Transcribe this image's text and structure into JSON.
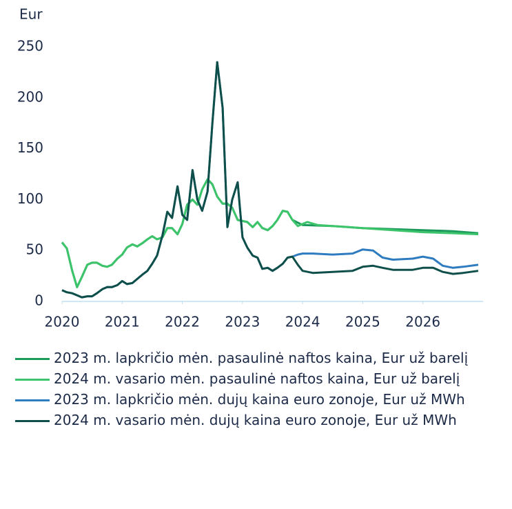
{
  "chart_data": {
    "type": "line",
    "y_label": "Eur",
    "xlim": [
      2020,
      2027
    ],
    "xticks": [
      2020,
      2021,
      2022,
      2023,
      2024,
      2025,
      2026
    ],
    "ylim": [
      0,
      250
    ],
    "yticks": [
      0,
      50,
      100,
      150,
      200,
      250
    ],
    "grid": false,
    "series": [
      {
        "name": "2023 m. lapkričio mėn. pasaulinė naftos kaina, Eur už barelį",
        "color": "#1b9a5c",
        "x": [
          2020,
          2020.08,
          2020.17,
          2020.25,
          2020.33,
          2020.42,
          2020.5,
          2020.58,
          2020.67,
          2020.75,
          2020.83,
          2020.92,
          2021,
          2021.08,
          2021.17,
          2021.25,
          2021.33,
          2021.42,
          2021.5,
          2021.58,
          2021.67,
          2021.75,
          2021.83,
          2021.92,
          2022,
          2022.08,
          2022.17,
          2022.25,
          2022.33,
          2022.42,
          2022.5,
          2022.58,
          2022.67,
          2022.75,
          2022.83,
          2022.92,
          2023,
          2023.08,
          2023.17,
          2023.25,
          2023.33,
          2023.42,
          2023.5,
          2023.58,
          2023.67,
          2023.75,
          2023.83,
          2024,
          2024.5,
          2025,
          2025.5,
          2026,
          2026.5,
          2026.92
        ],
        "values": [
          58,
          52,
          30,
          14,
          24,
          36,
          38,
          38,
          35,
          34,
          36,
          42,
          46,
          53,
          56,
          54,
          57,
          61,
          64,
          61,
          63,
          72,
          72,
          66,
          76,
          95,
          100,
          95,
          110,
          120,
          115,
          103,
          96,
          96,
          92,
          80,
          79,
          78,
          73,
          78,
          72,
          70,
          74,
          80,
          89,
          88,
          80,
          75,
          74,
          72,
          71,
          70,
          69,
          67
        ]
      },
      {
        "name": "2024 m. vasario mėn. pasaulinė naftos kaina, Eur už barelį",
        "color": "#3cc46a",
        "x": [
          2020,
          2020.08,
          2020.17,
          2020.25,
          2020.33,
          2020.42,
          2020.5,
          2020.58,
          2020.67,
          2020.75,
          2020.83,
          2020.92,
          2021,
          2021.08,
          2021.17,
          2021.25,
          2021.33,
          2021.42,
          2021.5,
          2021.58,
          2021.67,
          2021.75,
          2021.83,
          2021.92,
          2022,
          2022.08,
          2022.17,
          2022.25,
          2022.33,
          2022.42,
          2022.5,
          2022.58,
          2022.67,
          2022.75,
          2022.83,
          2022.92,
          2023,
          2023.08,
          2023.17,
          2023.25,
          2023.33,
          2023.42,
          2023.5,
          2023.58,
          2023.67,
          2023.75,
          2023.83,
          2023.92,
          2024,
          2024.08,
          2024.25,
          2024.5,
          2025,
          2025.5,
          2026,
          2026.5,
          2026.92
        ],
        "values": [
          58,
          52,
          30,
          14,
          24,
          36,
          38,
          38,
          35,
          34,
          36,
          42,
          46,
          53,
          56,
          54,
          57,
          61,
          64,
          61,
          63,
          72,
          72,
          66,
          76,
          95,
          100,
          95,
          110,
          120,
          115,
          103,
          96,
          96,
          92,
          80,
          79,
          78,
          73,
          78,
          72,
          70,
          74,
          80,
          89,
          88,
          80,
          74,
          76,
          78,
          75,
          74,
          72,
          70,
          68,
          67,
          66
        ]
      },
      {
        "name": "2023 m. lapkričio mėn. dujų kaina euro zonoje, Eur už MWh",
        "color": "#2e7bbf",
        "x": [
          2020,
          2020.08,
          2020.17,
          2020.25,
          2020.33,
          2020.42,
          2020.5,
          2020.58,
          2020.67,
          2020.75,
          2020.83,
          2020.92,
          2021,
          2021.08,
          2021.17,
          2021.25,
          2021.33,
          2021.42,
          2021.5,
          2021.58,
          2021.67,
          2021.75,
          2021.83,
          2021.92,
          2022,
          2022.08,
          2022.17,
          2022.25,
          2022.33,
          2022.42,
          2022.5,
          2022.58,
          2022.67,
          2022.75,
          2022.83,
          2022.92,
          2023,
          2023.08,
          2023.17,
          2023.25,
          2023.33,
          2023.42,
          2023.5,
          2023.58,
          2023.67,
          2023.75,
          2023.83,
          2023.92,
          2024,
          2024.17,
          2024.5,
          2024.83,
          2025,
          2025.17,
          2025.33,
          2025.5,
          2025.83,
          2026,
          2026.17,
          2026.33,
          2026.5,
          2026.67,
          2026.92
        ],
        "values": [
          11,
          9,
          8,
          6,
          4,
          5,
          5,
          8,
          12,
          14,
          14,
          16,
          20,
          17,
          18,
          22,
          26,
          30,
          37,
          45,
          65,
          88,
          82,
          113,
          85,
          80,
          129,
          100,
          89,
          108,
          175,
          235,
          190,
          73,
          100,
          117,
          63,
          53,
          45,
          43,
          32,
          33,
          30,
          33,
          37,
          43,
          44,
          46,
          47,
          47,
          46,
          47,
          51,
          50,
          43,
          41,
          42,
          44,
          42,
          35,
          33,
          34,
          36
        ]
      },
      {
        "name": "2024 m. vasario mėn. dujų kaina euro zonoje, Eur už MWh",
        "color": "#0e4f4a",
        "x": [
          2020,
          2020.08,
          2020.17,
          2020.25,
          2020.33,
          2020.42,
          2020.5,
          2020.58,
          2020.67,
          2020.75,
          2020.83,
          2020.92,
          2021,
          2021.08,
          2021.17,
          2021.25,
          2021.33,
          2021.42,
          2021.5,
          2021.58,
          2021.67,
          2021.75,
          2021.83,
          2021.92,
          2022,
          2022.08,
          2022.17,
          2022.25,
          2022.33,
          2022.42,
          2022.5,
          2022.58,
          2022.67,
          2022.75,
          2022.83,
          2022.92,
          2023,
          2023.08,
          2023.17,
          2023.25,
          2023.33,
          2023.42,
          2023.5,
          2023.58,
          2023.67,
          2023.75,
          2023.83,
          2023.92,
          2024,
          2024.17,
          2024.5,
          2024.83,
          2025,
          2025.17,
          2025.33,
          2025.5,
          2025.83,
          2026,
          2026.17,
          2026.33,
          2026.5,
          2026.67,
          2026.92
        ],
        "values": [
          11,
          9,
          8,
          6,
          4,
          5,
          5,
          8,
          12,
          14,
          14,
          16,
          20,
          17,
          18,
          22,
          26,
          30,
          37,
          45,
          65,
          88,
          82,
          113,
          85,
          80,
          129,
          100,
          89,
          108,
          175,
          235,
          190,
          73,
          100,
          117,
          63,
          53,
          45,
          43,
          32,
          33,
          30,
          33,
          37,
          43,
          44,
          36,
          30,
          28,
          29,
          30,
          34,
          35,
          33,
          31,
          31,
          33,
          33,
          29,
          27,
          28,
          30
        ]
      }
    ]
  }
}
